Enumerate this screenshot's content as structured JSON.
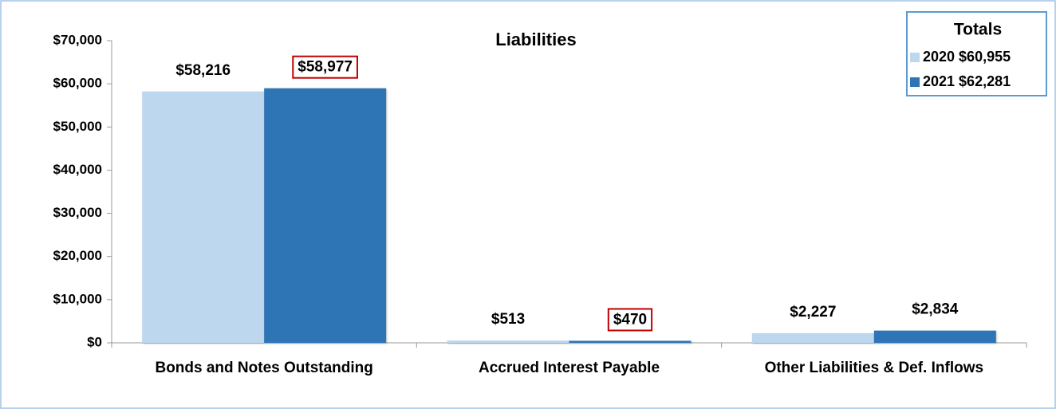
{
  "chart_data": {
    "type": "bar",
    "title": "Liabilities",
    "categories": [
      "Bonds and Notes Outstanding",
      "Accrued Interest Payable",
      "Other Liabilities & Def. Inflows"
    ],
    "series": [
      {
        "name": "2020 $60,955",
        "color": "#bdd7ee",
        "values": [
          58216,
          513,
          2227
        ],
        "value_labels": [
          "$58,216",
          "$513",
          "$2,227"
        ]
      },
      {
        "name": "2021 $62,281",
        "color": "#2e75b6",
        "values": [
          58977,
          470,
          2834
        ],
        "value_labels": [
          "$58,977",
          "$470",
          "$2,834"
        ],
        "highlight": [
          true,
          true,
          false
        ],
        "highlight_color": "#c00000"
      }
    ],
    "legend": {
      "title": "Totals",
      "position": "top-right"
    },
    "ylim": [
      0,
      70000
    ],
    "yticks": [
      {
        "value": 0,
        "label": "$0"
      },
      {
        "value": 10000,
        "label": "$10,000"
      },
      {
        "value": 20000,
        "label": "$20,000"
      },
      {
        "value": 30000,
        "label": "$30,000"
      },
      {
        "value": 40000,
        "label": "$40,000"
      },
      {
        "value": 50000,
        "label": "$50,000"
      },
      {
        "value": 60000,
        "label": "$60,000"
      },
      {
        "value": 70000,
        "label": "$70,000"
      }
    ],
    "grid": false
  }
}
